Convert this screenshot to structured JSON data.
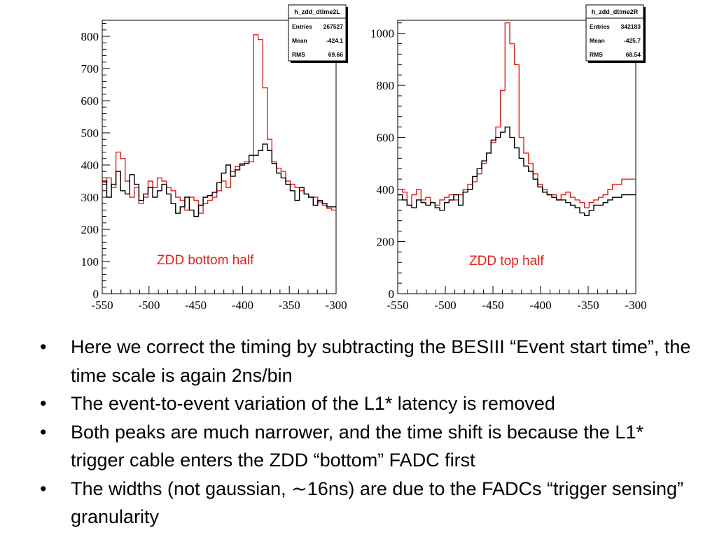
{
  "chart_data": [
    {
      "type": "histogram",
      "stats_box": {
        "title": "h_zdd_dtime2L",
        "rows": [
          [
            "Entries",
            "267527"
          ],
          [
            "Mean",
            "-424.1"
          ],
          [
            "RMS",
            "69.66"
          ]
        ]
      },
      "annotation": "ZDD bottom half",
      "xlim": [
        -550,
        -300
      ],
      "ylim": [
        0,
        850
      ],
      "xticks": [
        "-550",
        "-500",
        "-450",
        "-400",
        "-350",
        "-300"
      ],
      "yticks": [
        "0",
        "100",
        "200",
        "300",
        "400",
        "500",
        "600",
        "700",
        "800"
      ],
      "bin_width": 2,
      "series": [
        {
          "color": "#e8211d",
          "shape": "baseline",
          "values": [
            345,
            360,
            330,
            440,
            420,
            350,
            300,
            330,
            280,
            300,
            350,
            330,
            360,
            350,
            330,
            320,
            300,
            290,
            260,
            300,
            290,
            250,
            280,
            290,
            300,
            320,
            350,
            330,
            380,
            395,
            405,
            410,
            410,
            805,
            790,
            640,
            480,
            410,
            390,
            380,
            350,
            340,
            330,
            320,
            310,
            300,
            300,
            285,
            275,
            265,
            260
          ]
        },
        {
          "color": "#000000",
          "shape": "baseline",
          "values": [
            350,
            300,
            340,
            380,
            320,
            310,
            370,
            340,
            290,
            310,
            330,
            300,
            320,
            340,
            310,
            280,
            250,
            270,
            300,
            260,
            240,
            275,
            300,
            305,
            315,
            345,
            375,
            400,
            365,
            385,
            400,
            405,
            430,
            430,
            445,
            465,
            445,
            405,
            375,
            360,
            340,
            320,
            290,
            330,
            310,
            300,
            275,
            290,
            280,
            270,
            270
          ]
        }
      ]
    },
    {
      "type": "histogram",
      "stats_box": {
        "title": "h_zdd_dtime2R",
        "rows": [
          [
            "Entries",
            "342183"
          ],
          [
            "Mean",
            "-425.7"
          ],
          [
            "RMS",
            "68.54"
          ]
        ]
      },
      "annotation": "ZDD top half",
      "xlim": [
        -550,
        -300
      ],
      "ylim": [
        0,
        1050
      ],
      "xticks": [
        "-550",
        "-500",
        "-450",
        "-400",
        "-350",
        "-300"
      ],
      "yticks": [
        "0",
        "200",
        "400",
        "600",
        "800",
        "1000"
      ],
      "bin_width": 2,
      "series": [
        {
          "color": "#e8211d",
          "shape": "baseline",
          "values": [
            400,
            390,
            340,
            380,
            400,
            360,
            370,
            350,
            340,
            360,
            370,
            380,
            360,
            380,
            400,
            420,
            430,
            460,
            500,
            540,
            580,
            640,
            780,
            1040,
            960,
            880,
            600,
            540,
            500,
            460,
            420,
            400,
            380,
            380,
            360,
            380,
            390,
            370,
            360,
            350,
            330,
            350,
            360,
            370,
            380,
            400,
            420,
            420,
            440,
            440,
            440
          ]
        },
        {
          "color": "#000000",
          "shape": "baseline",
          "values": [
            380,
            360,
            340,
            330,
            360,
            350,
            340,
            350,
            330,
            320,
            350,
            360,
            380,
            340,
            390,
            400,
            450,
            480,
            510,
            540,
            590,
            600,
            620,
            640,
            600,
            560,
            520,
            490,
            470,
            440,
            410,
            390,
            380,
            370,
            360,
            360,
            350,
            340,
            330,
            310,
            300,
            320,
            340,
            340,
            350,
            360,
            370,
            370,
            380,
            380,
            380
          ]
        }
      ]
    }
  ],
  "bullets": [
    "Here we correct the timing by subtracting the BESIII “Event start time”, the time scale is again 2ns/bin",
    "The event-to-event variation of the L1* latency is removed",
    "Both peaks are much narrower, and the time shift is because the L1* trigger cable enters the ZDD “bottom” FADC first",
    "The widths (not gaussian, ∼16ns) are due to the FADCs “trigger sensing” granularity"
  ],
  "bullet_symbol": "•"
}
